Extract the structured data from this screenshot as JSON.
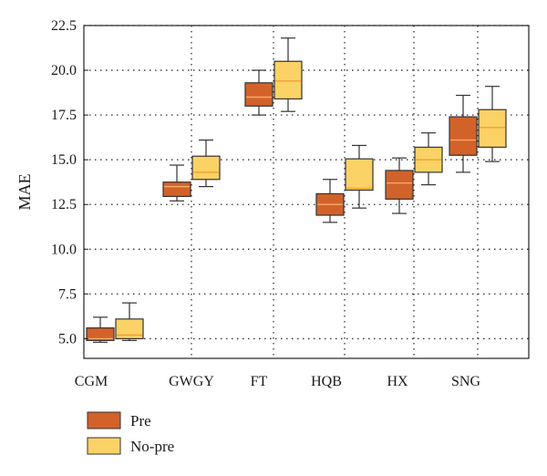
{
  "chart_data": {
    "type": "box",
    "ylabel": "MAE",
    "ylim": [
      3.9,
      22.5
    ],
    "yticks": [
      5.0,
      7.5,
      10.0,
      12.5,
      15.0,
      17.5,
      20.0,
      22.5
    ],
    "ytick_labels": [
      "5.0",
      "7.5",
      "10.0",
      "12.5",
      "15.0",
      "17.5",
      "20.0",
      "22.5"
    ],
    "grid": "dotted",
    "legend_position": "bottom-left",
    "categories": [
      "CGM",
      "GWGY",
      "FT",
      "HQB",
      "HX",
      "SNG"
    ],
    "series": [
      {
        "name": "Pre",
        "color": "#d2622a",
        "median_color": "#f5a96a",
        "boxes": [
          {
            "whislo": 4.8,
            "q1": 4.9,
            "med": 5.0,
            "q3": 5.6,
            "whishi": 6.2
          },
          {
            "whislo": 12.7,
            "q1": 12.95,
            "med": 13.5,
            "q3": 13.75,
            "whishi": 14.7
          },
          {
            "whislo": 17.5,
            "q1": 18.0,
            "med": 18.5,
            "q3": 19.3,
            "whishi": 20.0
          },
          {
            "whislo": 11.5,
            "q1": 11.9,
            "med": 12.5,
            "q3": 13.1,
            "whishi": 13.9
          },
          {
            "whislo": 12.0,
            "q1": 12.8,
            "med": 13.7,
            "q3": 14.4,
            "whishi": 15.1
          },
          {
            "whislo": 14.3,
            "q1": 15.25,
            "med": 16.1,
            "q3": 17.4,
            "whishi": 18.6
          }
        ]
      },
      {
        "name": "No-pre",
        "color": "#fbd266",
        "median_color": "#f0a030",
        "boxes": [
          {
            "whislo": 4.9,
            "q1": 5.0,
            "med": 5.2,
            "q3": 6.1,
            "whishi": 7.0
          },
          {
            "whislo": 13.5,
            "q1": 13.9,
            "med": 14.3,
            "q3": 15.2,
            "whishi": 16.1
          },
          {
            "whislo": 17.7,
            "q1": 18.4,
            "med": 19.4,
            "q3": 20.5,
            "whishi": 21.8
          },
          {
            "whislo": 12.3,
            "q1": 13.3,
            "med": 13.4,
            "q3": 15.05,
            "whishi": 15.8
          },
          {
            "whislo": 13.6,
            "q1": 14.3,
            "med": 15.0,
            "q3": 15.7,
            "whishi": 16.5
          },
          {
            "whislo": 14.9,
            "q1": 15.7,
            "med": 16.8,
            "q3": 17.8,
            "whishi": 19.1
          }
        ]
      }
    ]
  }
}
